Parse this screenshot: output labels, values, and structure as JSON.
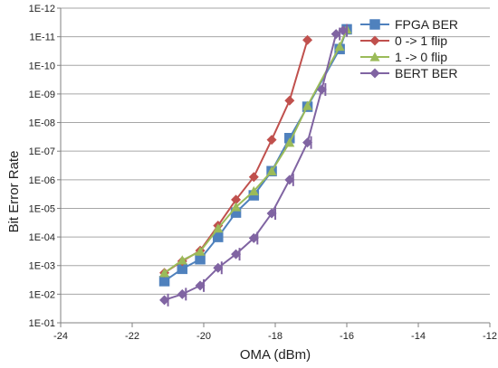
{
  "chart_data": {
    "type": "line",
    "title": "",
    "xlabel": "OMA (dBm)",
    "ylabel": "Bit Error Rate",
    "xlim": [
      -24,
      -12
    ],
    "ylim_exp": [
      -12,
      -1
    ],
    "y_scale": "log",
    "x_ticks": [
      -24,
      -22,
      -20,
      -18,
      -16,
      -14,
      -12
    ],
    "x_tick_labels": [
      "-24",
      "-22",
      "-20",
      "-18",
      "-16",
      "-14",
      "-12"
    ],
    "y_tick_exps": [
      -1,
      -2,
      -3,
      -4,
      -5,
      -6,
      -7,
      -8,
      -9,
      -10,
      -11,
      -12
    ],
    "y_tick_labels": [
      "1E-01",
      "1E-02",
      "1E-03",
      "1E-04",
      "1E-05",
      "1E-06",
      "1E-07",
      "1E-08",
      "1E-09",
      "1E-10",
      "1E-11",
      "1E-12"
    ],
    "grid": "horizontal",
    "legend_position": "top-right",
    "series": [
      {
        "name": "FPGA BER",
        "color": "#4f81bd",
        "marker": "square",
        "points": [
          [
            -21.1,
            0.0035
          ],
          [
            -20.6,
            0.0013
          ],
          [
            -20.1,
            0.0006
          ],
          [
            -19.6,
            0.0001
          ],
          [
            -19.1,
            1.4e-05
          ],
          [
            -18.6,
            3.5e-06
          ],
          [
            -18.1,
            5e-07
          ],
          [
            -17.6,
            3.5e-08
          ],
          [
            -17.1,
            2.8e-09
          ],
          [
            -16.2,
            2.7e-11
          ],
          [
            -16.0,
            5.5e-12
          ]
        ]
      },
      {
        "name": "0 -> 1 flip",
        "color": "#c0504d",
        "marker": "diamond",
        "points": [
          [
            -21.1,
            0.0018
          ],
          [
            -20.6,
            0.0007
          ],
          [
            -20.1,
            0.0003
          ],
          [
            -19.6,
            4e-05
          ],
          [
            -19.1,
            5e-06
          ],
          [
            -18.6,
            8e-07
          ],
          [
            -18.1,
            4e-08
          ],
          [
            -17.6,
            1.7e-09
          ],
          [
            -17.1,
            1.3e-11
          ]
        ]
      },
      {
        "name": "1 -> 0 flip",
        "color": "#9bbb59",
        "marker": "triangle",
        "points": [
          [
            -21.1,
            0.0018
          ],
          [
            -20.6,
            0.00065
          ],
          [
            -20.1,
            0.00032
          ],
          [
            -19.6,
            5e-05
          ],
          [
            -19.1,
            9e-06
          ],
          [
            -18.6,
            2.5e-06
          ],
          [
            -18.1,
            5e-07
          ],
          [
            -17.6,
            5e-08
          ],
          [
            -17.1,
            2.6e-09
          ],
          [
            -16.2,
            2.2e-11
          ],
          [
            -16.0,
            5.5e-12
          ]
        ]
      },
      {
        "name": "BERT BER",
        "color": "#8064a2",
        "marker": "diamond",
        "errorbars": true,
        "points": [
          [
            -21.1,
            0.016
          ],
          [
            -20.6,
            0.01
          ],
          [
            -20.1,
            0.005
          ],
          [
            -19.6,
            0.0012
          ],
          [
            -19.1,
            0.0004
          ],
          [
            -18.6,
            0.00011
          ],
          [
            -18.1,
            1.5e-05
          ],
          [
            -17.6,
            1e-06
          ],
          [
            -17.1,
            5e-08
          ],
          [
            -16.7,
            7e-10
          ],
          [
            -16.3,
            8e-12
          ],
          [
            -16.1,
            6e-12
          ]
        ]
      }
    ]
  }
}
